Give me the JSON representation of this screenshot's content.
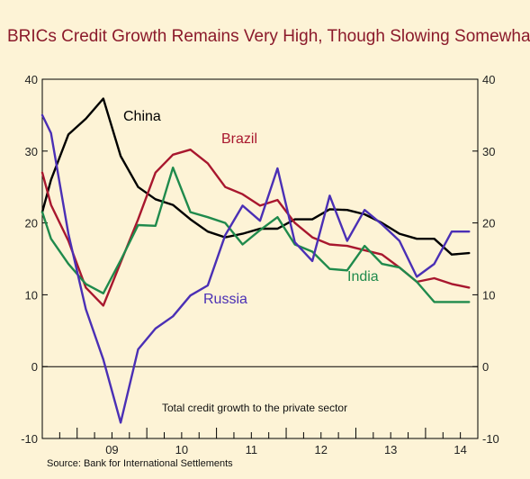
{
  "chart_data": {
    "type": "line",
    "title": "BRICs Credit Growth Remains Very High, Though Slowing Somewhat",
    "annotation": "Total credit growth to the private sector",
    "source": "Source:  Bank for International Settlements",
    "x_tick_labels": [
      "09",
      "10",
      "11",
      "12",
      "13",
      "14"
    ],
    "x_range": [
      2008.5,
      2014.75
    ],
    "ylim": [
      -10,
      40
    ],
    "y_ticks": [
      -10,
      0,
      10,
      20,
      30,
      40
    ],
    "grid": false,
    "zero_line": true,
    "series": [
      {
        "name": "China",
        "color": "#000000",
        "x": [
          2008.5,
          2008.625,
          2008.875,
          2009.125,
          2009.375,
          2009.625,
          2009.875,
          2010.125,
          2010.375,
          2010.625,
          2010.875,
          2011.125,
          2011.375,
          2011.625,
          2011.875,
          2012.125,
          2012.375,
          2012.625,
          2012.875,
          2013.125,
          2013.375,
          2013.625,
          2013.875,
          2014.125,
          2014.375,
          2014.625
        ],
        "values": [
          21.5,
          26,
          32.3,
          34.5,
          37.3,
          29.3,
          25,
          23.3,
          22.5,
          20.5,
          18.8,
          18,
          18.5,
          19.2,
          19.2,
          20.5,
          20.5,
          21.9,
          21.8,
          21.2,
          20,
          18.5,
          17.8,
          17.8,
          15.6,
          15.8
        ]
      },
      {
        "name": "Brazil",
        "color": "#a8172e",
        "x": [
          2008.5,
          2008.625,
          2008.875,
          2009.125,
          2009.375,
          2009.625,
          2009.875,
          2010.125,
          2010.375,
          2010.625,
          2010.875,
          2011.125,
          2011.375,
          2011.625,
          2011.875,
          2012.125,
          2012.375,
          2012.625,
          2012.875,
          2013.125,
          2013.375,
          2013.625,
          2013.875,
          2014.125,
          2014.375,
          2014.625
        ],
        "values": [
          27,
          22.5,
          17.5,
          11,
          8.5,
          14.5,
          20.5,
          27,
          29.5,
          30.2,
          28.3,
          25,
          24,
          22.4,
          23.2,
          20,
          18,
          17,
          16.8,
          16.2,
          15.6,
          13.8,
          11.8,
          12.3,
          11.5,
          11
        ]
      },
      {
        "name": "India",
        "color": "#1f8a4c",
        "x": [
          2008.5,
          2008.625,
          2008.875,
          2009.125,
          2009.375,
          2009.625,
          2009.875,
          2010.125,
          2010.375,
          2010.625,
          2010.875,
          2011.125,
          2011.375,
          2011.625,
          2011.875,
          2012.125,
          2012.375,
          2012.625,
          2012.875,
          2013.125,
          2013.375,
          2013.625,
          2013.875,
          2014.125,
          2014.375,
          2014.625
        ],
        "values": [
          21.5,
          17.8,
          14.3,
          11.5,
          10.2,
          14.8,
          19.7,
          19.6,
          27.7,
          21.5,
          20.8,
          20,
          17,
          19,
          20.8,
          17,
          16,
          13.6,
          13.4,
          16.8,
          14.3,
          13.8,
          11.8,
          9,
          9,
          9
        ]
      },
      {
        "name": "Russia",
        "color": "#4a2fb5",
        "x": [
          2008.5,
          2008.625,
          2008.875,
          2009.125,
          2009.375,
          2009.625,
          2009.875,
          2010.125,
          2010.375,
          2010.625,
          2010.875,
          2011.125,
          2011.375,
          2011.625,
          2011.875,
          2012.125,
          2012.375,
          2012.625,
          2012.875,
          2013.125,
          2013.375,
          2013.625,
          2013.875,
          2014.125,
          2014.375,
          2014.625
        ],
        "values": [
          35,
          32.5,
          18.5,
          8,
          1,
          -7.8,
          2.4,
          5.3,
          7,
          9.9,
          11.3,
          18.3,
          22.4,
          20.3,
          27.6,
          17.3,
          14.7,
          23.8,
          17.5,
          21.8,
          19.8,
          17.5,
          12.5,
          14.3,
          18.8,
          18.8
        ]
      }
    ]
  }
}
